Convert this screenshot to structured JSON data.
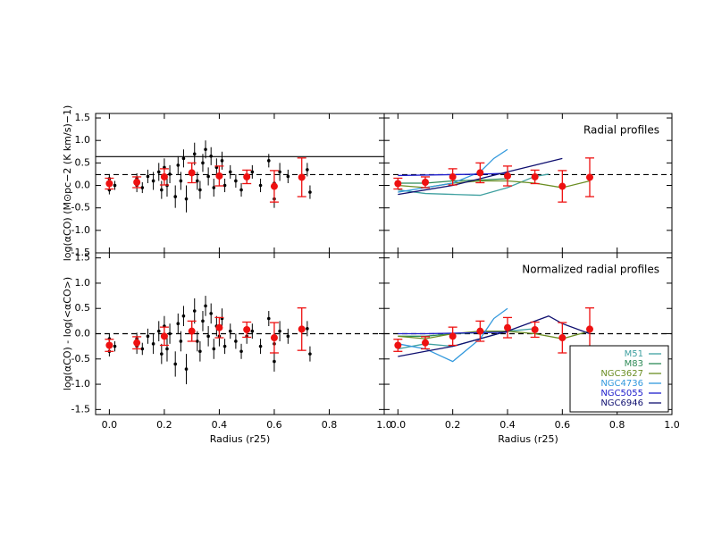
{
  "chart_data": [
    {
      "type": "errorbar",
      "ylabel": "log(αCO) (M⊙pc−2 (K km/s)−1)",
      "xlim": [
        -0.05,
        1.0
      ],
      "ylim": [
        -1.5,
        1.6
      ],
      "xticks": [
        0,
        0.2,
        0.4,
        0.6,
        0.8,
        1
      ],
      "yticks": [
        1.5,
        {
          "value": 1,
          "label": "1.0"
        },
        0.5,
        {
          "value": 0,
          "label": "0.0"
        },
        -0.5,
        {
          "value": -1,
          "label": "-1.0"
        },
        -1.5
      ],
      "reference_lines": [
        {
          "value": 0.64,
          "style": "solid"
        },
        {
          "value": 0.24,
          "style": "dashed"
        }
      ],
      "series": [
        {
          "type": "errorbar",
          "color": "#000000",
          "x": [
            0.0,
            0.0,
            0.0,
            0.02,
            0.1,
            0.1,
            0.12,
            0.14,
            0.16,
            0.18,
            0.19,
            0.2,
            0.21,
            0.22,
            0.24,
            0.25,
            0.26,
            0.27,
            0.28,
            0.3,
            0.31,
            0.32,
            0.33,
            0.34,
            0.35,
            0.36,
            0.37,
            0.38,
            0.39,
            0.4,
            0.41,
            0.42,
            0.44,
            0.46,
            0.48,
            0.5,
            0.52,
            0.55,
            0.58,
            0.6,
            0.6,
            0.62,
            0.65,
            0.72,
            0.73
          ],
          "values": [
            0.05,
            -0.1,
            0.15,
            0.0,
            0.0,
            0.15,
            -0.05,
            0.2,
            0.1,
            0.3,
            -0.1,
            0.4,
            0.0,
            0.25,
            -0.25,
            0.45,
            0.1,
            0.6,
            -0.3,
            0.3,
            0.7,
            0.1,
            -0.1,
            0.5,
            0.8,
            0.2,
            0.65,
            -0.05,
            0.4,
            0.2,
            0.55,
            0.0,
            0.3,
            0.1,
            -0.1,
            0.2,
            0.3,
            0.0,
            0.55,
            -0.3,
            0.05,
            0.3,
            0.2,
            0.35,
            -0.15
          ],
          "errors": [
            0.12,
            0.1,
            0.1,
            0.1,
            0.15,
            0.12,
            0.12,
            0.15,
            0.2,
            0.2,
            0.2,
            0.2,
            0.25,
            0.2,
            0.25,
            0.2,
            0.2,
            0.2,
            0.3,
            0.2,
            0.25,
            0.2,
            0.2,
            0.2,
            0.2,
            0.2,
            0.2,
            0.2,
            0.2,
            0.2,
            0.2,
            0.15,
            0.15,
            0.15,
            0.15,
            0.15,
            0.15,
            0.15,
            0.15,
            0.2,
            0.15,
            0.2,
            0.15,
            0.15,
            0.15
          ]
        },
        {
          "type": "errorbar",
          "color": "#ee1111",
          "x": [
            0.0,
            0.1,
            0.2,
            0.3,
            0.4,
            0.5,
            0.6,
            0.7
          ],
          "values": [
            0.04,
            0.07,
            0.19,
            0.28,
            0.21,
            0.19,
            -0.02,
            0.18
          ],
          "errors": [
            0.12,
            0.12,
            0.18,
            0.22,
            0.22,
            0.15,
            0.35,
            0.43
          ]
        }
      ]
    },
    {
      "type": "errorbar",
      "annotation": "Radial profiles",
      "xlim": [
        -0.05,
        1.0
      ],
      "ylim": [
        -1.5,
        1.6
      ],
      "xticks": [
        0,
        0.2,
        0.4,
        0.6,
        0.8,
        1
      ],
      "yticks": [
        1.5,
        1,
        0.5,
        0,
        -0.5,
        -1,
        -1.5
      ],
      "reference_lines": [
        {
          "value": 0.24,
          "style": "dashed"
        }
      ],
      "series": [
        {
          "type": "line",
          "color": "#3fa0a0",
          "x": [
            0,
            0.1,
            0.2,
            0.3,
            0.4,
            0.5,
            0.55
          ],
          "values": [
            -0.1,
            -0.18,
            -0.2,
            -0.22,
            -0.05,
            0.2,
            0.25
          ]
        },
        {
          "type": "line",
          "color": "#2e8b57",
          "x": [
            0,
            0.1,
            0.2,
            0.3,
            0.4
          ],
          "values": [
            0.05,
            0.05,
            0.1,
            0.12,
            0.15
          ]
        },
        {
          "type": "line",
          "color": "#6b8e23",
          "x": [
            0,
            0.1,
            0.2,
            0.3,
            0.4,
            0.5,
            0.6,
            0.7
          ],
          "values": [
            0.0,
            -0.05,
            0.05,
            0.1,
            0.1,
            0.05,
            -0.05,
            0.1
          ]
        },
        {
          "type": "line",
          "color": "#3399dd",
          "x": [
            0,
            0.1,
            0.2,
            0.3,
            0.35,
            0.4
          ],
          "values": [
            -0.15,
            -0.05,
            0.05,
            0.3,
            0.6,
            0.8
          ]
        },
        {
          "type": "line",
          "color": "#2020cc",
          "x": [
            0,
            0.1,
            0.2,
            0.3,
            0.4
          ],
          "values": [
            0.22,
            0.23,
            0.24,
            0.25,
            0.27
          ]
        },
        {
          "type": "line",
          "color": "#101070",
          "x": [
            0,
            0.1,
            0.2,
            0.3,
            0.4,
            0.5,
            0.6
          ],
          "values": [
            -0.2,
            -0.1,
            0.0,
            0.15,
            0.3,
            0.45,
            0.6
          ]
        },
        {
          "type": "errorbar",
          "color": "#ee1111",
          "x": [
            0.0,
            0.1,
            0.2,
            0.3,
            0.4,
            0.5,
            0.6,
            0.7
          ],
          "values": [
            0.04,
            0.07,
            0.19,
            0.28,
            0.21,
            0.19,
            -0.02,
            0.18
          ],
          "errors": [
            0.12,
            0.12,
            0.18,
            0.22,
            0.22,
            0.15,
            0.35,
            0.43
          ]
        }
      ]
    },
    {
      "type": "errorbar",
      "ylabel": "log(αCO) - log(<αCO>)",
      "xlabel": "Radius (r25)",
      "xlim": [
        -0.05,
        1.0
      ],
      "ylim": [
        -1.6,
        1.6
      ],
      "xticks": [
        {
          "value": 0,
          "label": "0.0"
        },
        0.2,
        0.4,
        0.6,
        0.8,
        {
          "value": 1,
          "label": "1.0"
        }
      ],
      "yticks": [
        1.5,
        {
          "value": 1,
          "label": "1.0"
        },
        0.5,
        {
          "value": 0,
          "label": "0.0"
        },
        -0.5,
        {
          "value": -1,
          "label": "-1.0"
        },
        -1.5
      ],
      "reference_lines": [
        {
          "value": 0,
          "style": "dashed"
        }
      ],
      "series": [
        {
          "type": "errorbar",
          "color": "#000000",
          "x": [
            0.0,
            0.0,
            0.0,
            0.02,
            0.1,
            0.1,
            0.12,
            0.14,
            0.16,
            0.18,
            0.19,
            0.2,
            0.21,
            0.22,
            0.24,
            0.25,
            0.26,
            0.27,
            0.28,
            0.3,
            0.31,
            0.32,
            0.33,
            0.34,
            0.35,
            0.36,
            0.37,
            0.38,
            0.39,
            0.4,
            0.41,
            0.42,
            0.44,
            0.46,
            0.48,
            0.5,
            0.52,
            0.55,
            0.58,
            0.6,
            0.6,
            0.62,
            0.65,
            0.72,
            0.73
          ],
          "values": [
            -0.2,
            -0.35,
            -0.1,
            -0.25,
            -0.25,
            -0.1,
            -0.3,
            -0.05,
            -0.2,
            0.05,
            -0.4,
            0.15,
            -0.3,
            0.0,
            -0.6,
            0.2,
            -0.15,
            0.35,
            -0.7,
            0.05,
            0.45,
            -0.15,
            -0.35,
            0.25,
            0.55,
            -0.05,
            0.4,
            -0.3,
            0.15,
            -0.05,
            0.3,
            -0.25,
            0.05,
            -0.15,
            -0.35,
            -0.05,
            0.05,
            -0.25,
            0.3,
            -0.55,
            -0.2,
            0.05,
            -0.05,
            0.1,
            -0.4
          ],
          "errors": [
            0.12,
            0.1,
            0.1,
            0.1,
            0.15,
            0.12,
            0.12,
            0.15,
            0.2,
            0.2,
            0.2,
            0.2,
            0.25,
            0.2,
            0.25,
            0.2,
            0.2,
            0.2,
            0.3,
            0.2,
            0.25,
            0.2,
            0.2,
            0.2,
            0.2,
            0.2,
            0.2,
            0.2,
            0.2,
            0.2,
            0.2,
            0.15,
            0.15,
            0.15,
            0.15,
            0.15,
            0.15,
            0.15,
            0.15,
            0.2,
            0.15,
            0.2,
            0.15,
            0.15,
            0.15
          ]
        },
        {
          "type": "errorbar",
          "color": "#ee1111",
          "x": [
            0.0,
            0.1,
            0.2,
            0.3,
            0.4,
            0.5,
            0.6,
            0.7
          ],
          "values": [
            -0.23,
            -0.18,
            -0.05,
            0.05,
            0.12,
            0.08,
            -0.08,
            0.09
          ],
          "errors": [
            0.12,
            0.12,
            0.18,
            0.2,
            0.2,
            0.15,
            0.3,
            0.42
          ]
        }
      ]
    },
    {
      "type": "errorbar",
      "annotation": "Normalized radial profiles",
      "xlabel": "Radius (r25)",
      "xlim": [
        -0.05,
        1.0
      ],
      "ylim": [
        -1.6,
        1.6
      ],
      "xticks": [
        {
          "value": 0,
          "label": "0.0"
        },
        0.2,
        0.4,
        0.6,
        0.8,
        {
          "value": 1,
          "label": "1.0"
        }
      ],
      "yticks": [
        1.5,
        1,
        0.5,
        0,
        -0.5,
        -1,
        -1.5
      ],
      "reference_lines": [
        {
          "value": 0,
          "style": "dashed"
        }
      ],
      "legend": "lower right",
      "series": [
        {
          "type": "line",
          "name": "M51",
          "color": "#3fa0a0",
          "x": [
            0,
            0.1,
            0.2,
            0.3,
            0.4,
            0.5
          ],
          "values": [
            -0.3,
            -0.2,
            -0.25,
            -0.1,
            0.05,
            0.1
          ]
        },
        {
          "type": "line",
          "name": "M83",
          "color": "#2e8b57",
          "x": [
            0,
            0.1,
            0.2,
            0.3,
            0.4
          ],
          "values": [
            -0.05,
            -0.05,
            0,
            0.02,
            0.05
          ]
        },
        {
          "type": "line",
          "name": "NGC3627",
          "color": "#6b8e23",
          "x": [
            0,
            0.1,
            0.2,
            0.3,
            0.4,
            0.5,
            0.6,
            0.7
          ],
          "values": [
            -0.05,
            -0.1,
            0,
            0.05,
            0.05,
            0.0,
            -0.1,
            0.05
          ]
        },
        {
          "type": "line",
          "name": "NGC4736",
          "color": "#3399dd",
          "x": [
            0,
            0.1,
            0.2,
            0.3,
            0.35,
            0.4
          ],
          "values": [
            -0.2,
            -0.3,
            -0.55,
            -0.1,
            0.3,
            0.5
          ]
        },
        {
          "type": "line",
          "name": "NGC5055",
          "color": "#2020cc",
          "x": [
            0,
            0.1,
            0.2,
            0.3,
            0.4
          ],
          "values": [
            0,
            0,
            0.01,
            0.02,
            0.03
          ]
        },
        {
          "type": "line",
          "name": "NGC6946",
          "color": "#101070",
          "x": [
            0,
            0.1,
            0.2,
            0.3,
            0.4,
            0.5,
            0.55,
            0.6,
            0.7
          ],
          "values": [
            -0.45,
            -0.35,
            -0.25,
            -0.1,
            0.05,
            0.25,
            0.35,
            0.2,
            0.0
          ]
        },
        {
          "type": "errorbar",
          "color": "#ee1111",
          "x": [
            0.0,
            0.1,
            0.2,
            0.3,
            0.4,
            0.5,
            0.6,
            0.7
          ],
          "values": [
            -0.23,
            -0.18,
            -0.05,
            0.05,
            0.12,
            0.08,
            -0.08,
            0.09
          ],
          "errors": [
            0.12,
            0.12,
            0.18,
            0.2,
            0.2,
            0.15,
            0.3,
            0.42
          ]
        }
      ]
    }
  ]
}
